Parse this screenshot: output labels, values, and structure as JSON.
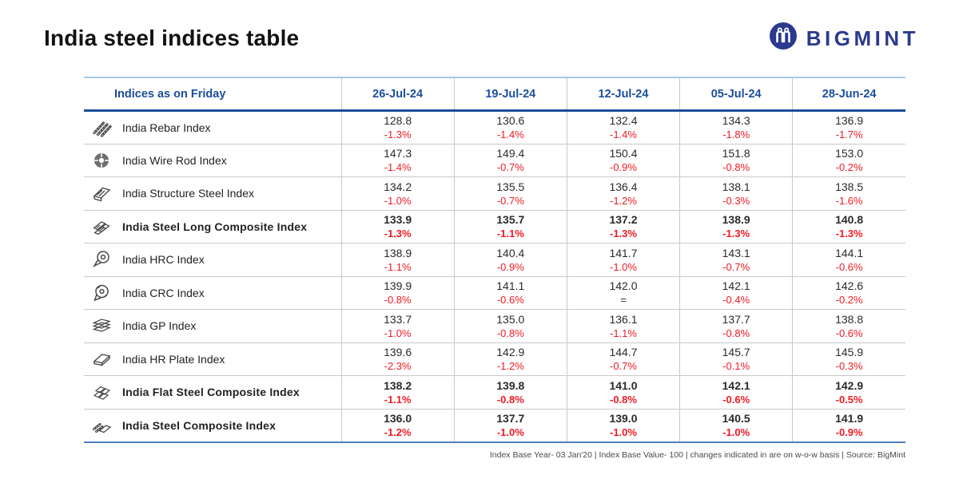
{
  "page": {
    "title": "India steel indices table"
  },
  "logo": {
    "text": "BIGMINT",
    "brand_color": "#2b3a8f"
  },
  "colors": {
    "header_blue": "#1b4e9b",
    "negative_red": "#ee1b24",
    "top_rule_light_blue": "#a9c6e8",
    "bottom_rule_blue": "#4d7ec2",
    "divider_gray": "#c9c9c9"
  },
  "chart_data": {
    "type": "table",
    "title": "India steel indices table",
    "columns": [
      "Indices as on Friday",
      "26-Jul-24",
      "19-Jul-24",
      "12-Jul-24",
      "05-Jul-24",
      "28-Jun-24"
    ],
    "rows": [
      {
        "label": "India Rebar Index",
        "icon": "rebar-icon",
        "bold": false,
        "values": [
          "128.8",
          "130.6",
          "132.4",
          "134.3",
          "136.9"
        ],
        "wow_changes": [
          "-1.3%",
          "-1.4%",
          "-1.4%",
          "-1.8%",
          "-1.7%"
        ]
      },
      {
        "label": "India Wire Rod Index",
        "icon": "wire-rod-icon",
        "bold": false,
        "values": [
          "147.3",
          "149.4",
          "150.4",
          "151.8",
          "153.0"
        ],
        "wow_changes": [
          "-1.4%",
          "-0.7%",
          "-0.9%",
          "-0.8%",
          "-0.2%"
        ]
      },
      {
        "label": "India Structure Steel Index",
        "icon": "structure-steel-icon",
        "bold": false,
        "values": [
          "134.2",
          "135.5",
          "136.4",
          "138.1",
          "138.5"
        ],
        "wow_changes": [
          "-1.0%",
          "-0.7%",
          "-1.2%",
          "-0.3%",
          "-1.6%"
        ]
      },
      {
        "label": "India Steel Long Composite Index",
        "icon": "long-composite-icon",
        "bold": true,
        "values": [
          "133.9",
          "135.7",
          "137.2",
          "138.9",
          "140.8"
        ],
        "wow_changes": [
          "-1.3%",
          "-1.1%",
          "-1.3%",
          "-1.3%",
          "-1.3%"
        ]
      },
      {
        "label": "India HRC Index",
        "icon": "hrc-coil-icon",
        "bold": false,
        "values": [
          "138.9",
          "140.4",
          "141.7",
          "143.1",
          "144.1"
        ],
        "wow_changes": [
          "-1.1%",
          "-0.9%",
          "-1.0%",
          "-0.7%",
          "-0.6%"
        ]
      },
      {
        "label": "India CRC Index",
        "icon": "crc-coil-icon",
        "bold": false,
        "values": [
          "139.9",
          "141.1",
          "142.0",
          "142.1",
          "142.6"
        ],
        "wow_changes": [
          "-0.8%",
          "-0.6%",
          "=",
          "-0.4%",
          "-0.2%"
        ]
      },
      {
        "label": "India GP Index",
        "icon": "gp-sheets-icon",
        "bold": false,
        "values": [
          "133.7",
          "135.0",
          "136.1",
          "137.7",
          "138.8"
        ],
        "wow_changes": [
          "-1.0%",
          "-0.8%",
          "-1.1%",
          "-0.8%",
          "-0.6%"
        ]
      },
      {
        "label": "India HR Plate Index",
        "icon": "hr-plate-icon",
        "bold": false,
        "values": [
          "139.6",
          "142.9",
          "144.7",
          "145.7",
          "145.9"
        ],
        "wow_changes": [
          "-2.3%",
          "-1.2%",
          "-0.7%",
          "-0.1%",
          "-0.3%"
        ]
      },
      {
        "label": "India Flat Steel Composite Index",
        "icon": "flat-composite-icon",
        "bold": true,
        "values": [
          "138.2",
          "139.8",
          "141.0",
          "142.1",
          "142.9"
        ],
        "wow_changes": [
          "-1.1%",
          "-0.8%",
          "-0.8%",
          "-0.6%",
          "-0.5%"
        ]
      },
      {
        "label": "India Steel Composite Index",
        "icon": "steel-composite-icon",
        "bold": true,
        "values": [
          "136.0",
          "137.7",
          "139.0",
          "140.5",
          "141.9"
        ],
        "wow_changes": [
          "-1.2%",
          "-1.0%",
          "-1.0%",
          "-1.0%",
          "-0.9%"
        ]
      }
    ],
    "footnote": "Index Base Year- 03 Jan'20 | Index Base Value- 100 | changes indicated in are on w-o-w basis | Source: BigMint"
  }
}
